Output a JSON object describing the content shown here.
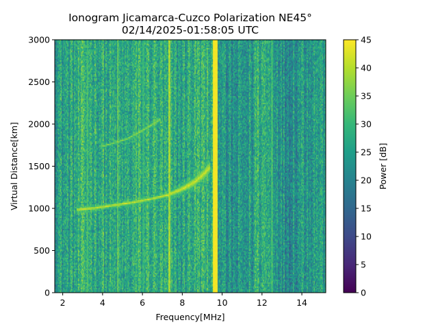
{
  "chart_data": {
    "type": "heatmap",
    "title": "Ionogram Jicamarca-Cuzco Polarization NE45°",
    "subtitle": "02/14/2025-01:58:05 UTC",
    "xlabel": "Frequency[MHz]",
    "ylabel": "Virtual Distance[km]",
    "xlim": [
      1.6,
      15.2
    ],
    "ylim": [
      0,
      3000
    ],
    "xticks": [
      2,
      4,
      6,
      8,
      10,
      12,
      14
    ],
    "yticks": [
      0,
      500,
      1000,
      1500,
      2000,
      2500,
      3000
    ],
    "colorbar": {
      "label": "Power [dB]",
      "range": [
        0,
        45
      ],
      "ticks": [
        0,
        5,
        10,
        15,
        20,
        25,
        30,
        35,
        40,
        45
      ],
      "colormap": "viridis"
    },
    "background_power_db": 27,
    "vertical_interference_lines": [
      {
        "freq_mhz": 3.25,
        "power_db": 35
      },
      {
        "freq_mhz": 4.75,
        "power_db": 37
      },
      {
        "freq_mhz": 6.05,
        "power_db": 33
      },
      {
        "freq_mhz": 7.35,
        "power_db": 42
      },
      {
        "freq_mhz": 9.65,
        "power_db": 45
      },
      {
        "freq_mhz": 12.5,
        "power_db": 34
      }
    ],
    "traces": [
      {
        "name": "first-hop echo trace",
        "power_db": 44,
        "points": [
          [
            2.7,
            985
          ],
          [
            3.5,
            1000
          ],
          [
            4.5,
            1035
          ],
          [
            5.5,
            1070
          ],
          [
            6.5,
            1115
          ],
          [
            7.3,
            1160
          ],
          [
            8.0,
            1230
          ],
          [
            8.6,
            1310
          ],
          [
            9.0,
            1390
          ],
          [
            9.4,
            1490
          ]
        ]
      },
      {
        "name": "second-hop echo trace",
        "power_db": 40,
        "points": [
          [
            3.9,
            1730
          ],
          [
            4.5,
            1770
          ],
          [
            5.2,
            1820
          ],
          [
            5.9,
            1910
          ],
          [
            6.4,
            1980
          ],
          [
            6.9,
            2060
          ]
        ]
      }
    ]
  }
}
